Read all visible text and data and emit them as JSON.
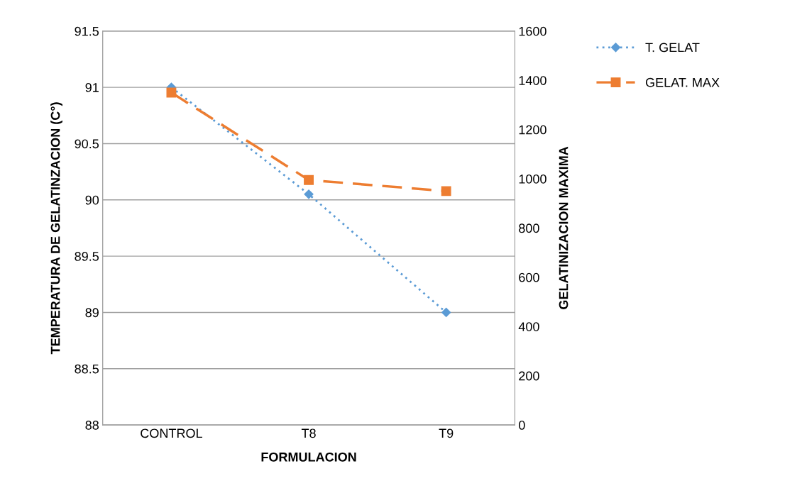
{
  "chart_data": {
    "type": "line",
    "xlabel": "FORMULACION",
    "ylabel": "TEMPERATURA DE GELATINZACION (C°)",
    "y2label": "GELATINIZACION MAXIMA",
    "categories": [
      "CONTROL",
      "T8",
      "T9"
    ],
    "series": [
      {
        "name": "T. GELAT",
        "color": "#5b9bd5",
        "values": [
          91,
          90.05,
          89
        ],
        "marker": "diamond",
        "line_style": "dotted"
      },
      {
        "name": "GELAT. MAX",
        "color": "#ed7d31",
        "values": [
          1350,
          995,
          950
        ],
        "marker": "square",
        "line_style": "dashed",
        "axis": "y2"
      }
    ],
    "ylim": [
      88,
      91.5
    ],
    "yticks": [
      88,
      88.5,
      89,
      89.5,
      90,
      90.5,
      91,
      91.5
    ],
    "y2lim": [
      0,
      1600
    ],
    "y2ticks": [
      0,
      200,
      400,
      600,
      800,
      1000,
      1200,
      1400,
      1600
    ],
    "grid": "y",
    "legend": "right"
  }
}
